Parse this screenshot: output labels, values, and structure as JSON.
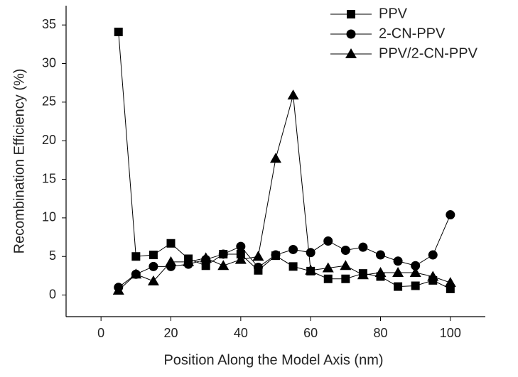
{
  "chart_data": {
    "type": "line",
    "x_label": "Position Along the Model Axis (nm)",
    "y_label": "Recombination Efficiency (%)",
    "x": [
      5,
      10,
      15,
      20,
      25,
      30,
      35,
      40,
      45,
      50,
      55,
      60,
      65,
      70,
      75,
      80,
      85,
      90,
      95,
      100
    ],
    "series": [
      {
        "name": "PPV",
        "color": "#000000",
        "marker": "square",
        "values": [
          34.1,
          5.0,
          5.2,
          6.7,
          4.7,
          3.8,
          5.3,
          5.3,
          3.2,
          5.1,
          3.7,
          3.1,
          2.1,
          2.1,
          2.8,
          2.4,
          1.1,
          1.2,
          1.9,
          0.8
        ]
      },
      {
        "name": "2-CN-PPV",
        "color": "#000000",
        "marker": "circle",
        "values": [
          1.0,
          2.7,
          3.7,
          3.7,
          4.0,
          4.6,
          5.3,
          6.3,
          3.6,
          5.2,
          5.9,
          5.5,
          7.0,
          5.8,
          6.2,
          5.2,
          4.4,
          3.8,
          5.2,
          10.4
        ]
      },
      {
        "name": "PPV/2-CN-PPV",
        "color": "#000000",
        "marker": "triangle",
        "values": [
          0.6,
          2.7,
          1.8,
          4.3,
          4.3,
          4.8,
          3.8,
          4.6,
          5.0,
          17.7,
          25.9,
          3.2,
          3.5,
          3.8,
          2.6,
          2.9,
          2.9,
          2.9,
          2.4,
          1.6
        ]
      }
    ],
    "xlim": [
      -10,
      110
    ],
    "xticks": [
      0,
      20,
      40,
      60,
      80,
      100
    ],
    "ylim": [
      -2.8,
      37.5
    ],
    "yticks": [
      0,
      5,
      10,
      15,
      20,
      25,
      30,
      35
    ],
    "grid": false,
    "legend": "upper right"
  }
}
